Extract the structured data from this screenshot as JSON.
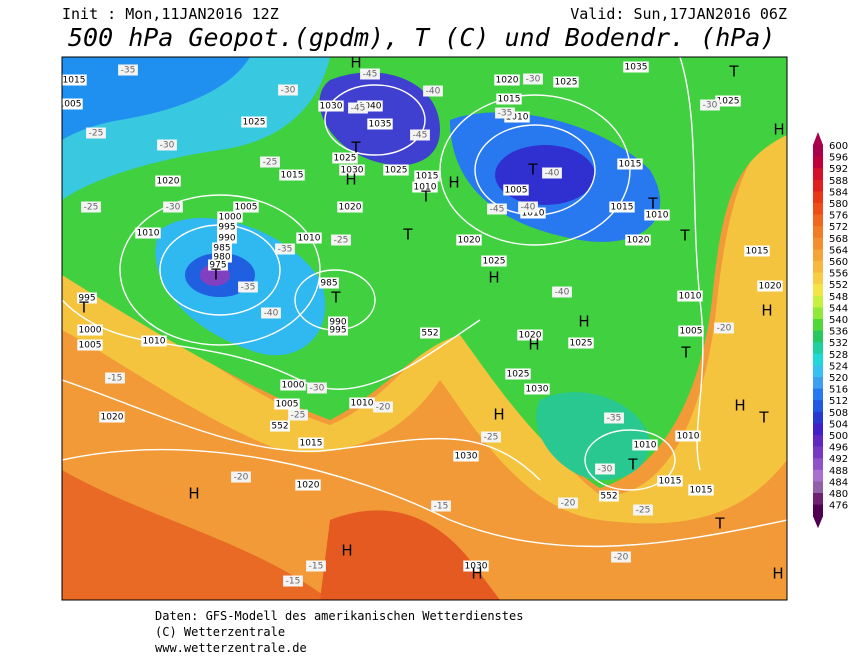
{
  "header": {
    "init": "Init : Mon,11JAN2016 12Z",
    "valid": "Valid: Sun,17JAN2016 06Z",
    "title": "500 hPa Geopot.(gpdm), T (C) und Bodendr. (hPa)"
  },
  "colorbar": {
    "ticks": [
      600,
      596,
      592,
      588,
      584,
      580,
      576,
      572,
      568,
      564,
      560,
      556,
      552,
      548,
      544,
      540,
      536,
      532,
      528,
      524,
      520,
      516,
      512,
      508,
      504,
      500,
      496,
      492,
      488,
      484,
      480,
      476
    ],
    "colors": [
      "#a8004a",
      "#c0003a",
      "#d4102a",
      "#e0201e",
      "#e83818",
      "#ec5018",
      "#f06820",
      "#f07c28",
      "#f29030",
      "#f4a438",
      "#f6b840",
      "#f8cc44",
      "#f4e448",
      "#c8f040",
      "#90e838",
      "#50d838",
      "#28c860",
      "#20d0a0",
      "#20d8d8",
      "#38c0f0",
      "#40a0f0",
      "#2878f0",
      "#2058e0",
      "#2838d0",
      "#4020c8",
      "#6028c0",
      "#7838c0",
      "#9050c8",
      "#a870d0",
      "#9060a8",
      "#702070",
      "#500050"
    ]
  },
  "map": {
    "labels": [
      "1015",
      "1005",
      "1025",
      "1020",
      "1015",
      "1005",
      "1010",
      "1000",
      "995",
      "990",
      "985",
      "980",
      "975",
      "1010",
      "985",
      "990",
      "995",
      "995",
      "1000",
      "1005",
      "1010",
      "1000",
      "1005",
      "1010",
      "1015",
      "1020",
      "1020",
      "1030",
      "1040",
      "1035",
      "1025",
      "1030",
      "1025",
      "1020",
      "1015",
      "1010",
      "1020",
      "1025",
      "1020",
      "1015",
      "1010",
      "1025",
      "1035",
      "1025",
      "1015",
      "1015",
      "1010",
      "1020",
      "1005",
      "1010",
      "1015",
      "1020",
      "1010",
      "1005",
      "1020",
      "1025",
      "1025",
      "1030",
      "1010",
      "1010",
      "1015",
      "1015",
      "1030",
      "1030",
      "552",
      "552",
      "552",
      "-35",
      "-30",
      "-25",
      "-30",
      "-25",
      "-30",
      "-25",
      "-35",
      "-40",
      "-35",
      "-25",
      "-30",
      "-25",
      "-20",
      "-45",
      "-45",
      "-45",
      "-40",
      "-35",
      "-30",
      "-40",
      "-40",
      "-45",
      "-40",
      "-30",
      "-20",
      "-35",
      "-30",
      "-25",
      "-20",
      "-25",
      "-20",
      "-20",
      "-15",
      "-15",
      "-15",
      "-15",
      "H",
      "T",
      "H",
      "H",
      "T",
      "T",
      "H",
      "T",
      "T",
      "T",
      "T",
      "T",
      "T",
      "T",
      "H",
      "H",
      "H",
      "T",
      "H",
      "H",
      "H",
      "T",
      "T",
      "H",
      "H",
      "T",
      "H",
      "H"
    ]
  },
  "footer": {
    "line1": "Daten: GFS-Modell des amerikanischen Wetterdienstes",
    "line2": "(C) Wetterzentrale",
    "line3": "www.wetterzentrale.de"
  }
}
